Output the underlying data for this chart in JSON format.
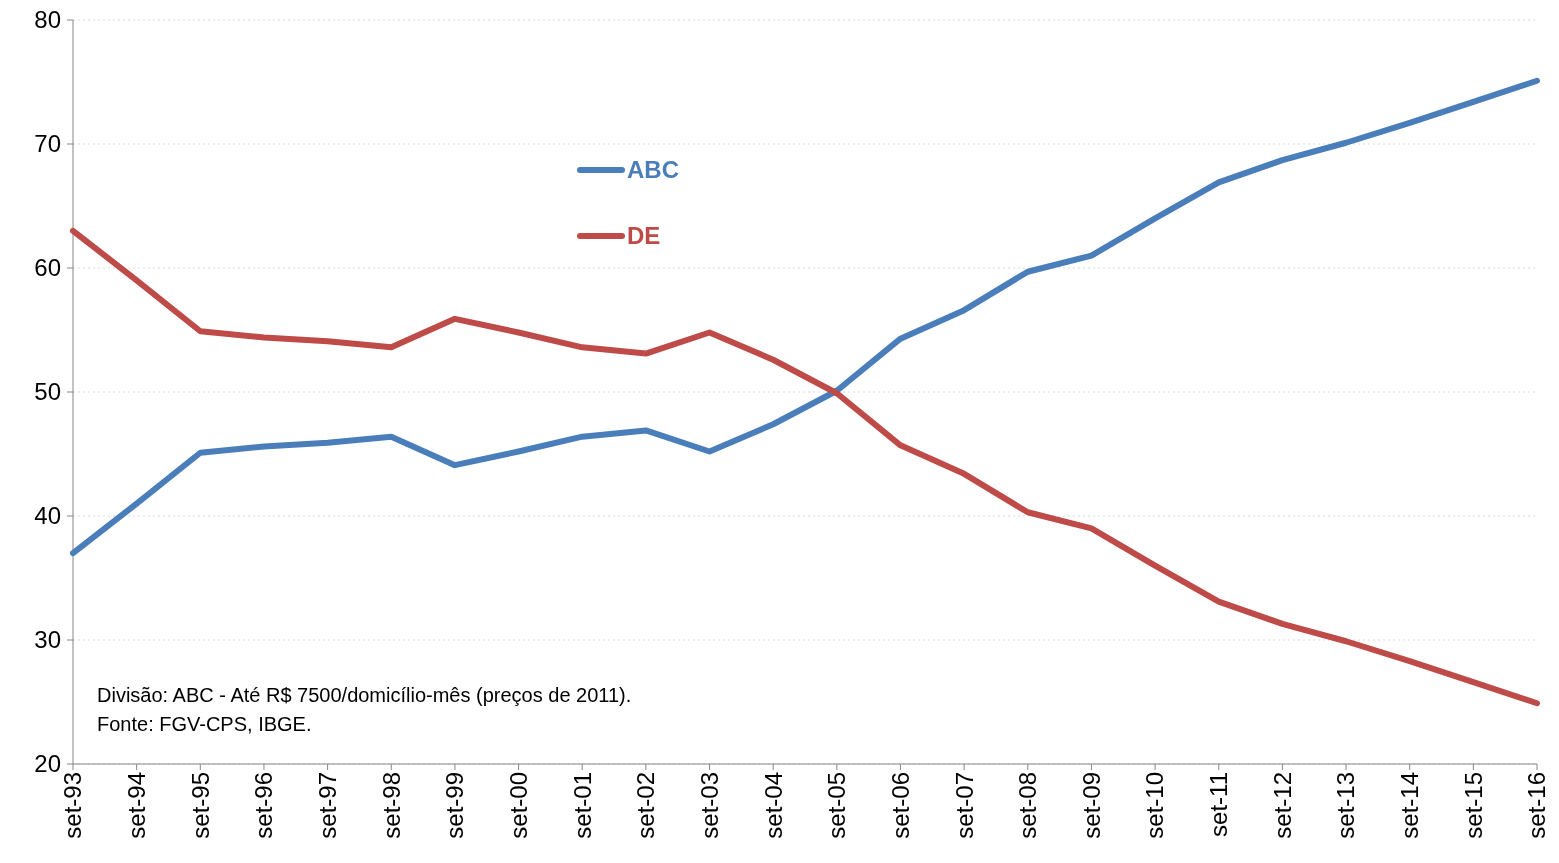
{
  "chart_data": {
    "type": "line",
    "categories": [
      "set-93",
      "set-94",
      "set-95",
      "set-96",
      "set-97",
      "set-98",
      "set-99",
      "set-00",
      "set-01",
      "set-02",
      "set-03",
      "set-04",
      "set-05",
      "set-06",
      "set-07",
      "set-08",
      "set-09",
      "set-10",
      "set-11",
      "set-12",
      "set-13",
      "set-14",
      "set-15",
      "set-16"
    ],
    "series": [
      {
        "name": "ABC",
        "color": "#4a7ebb",
        "values": [
          37.0,
          41.0,
          45.1,
          45.6,
          45.9,
          46.4,
          44.1,
          45.2,
          46.4,
          46.9,
          45.2,
          47.4,
          50.1,
          54.3,
          56.6,
          59.7,
          61.0,
          64.0,
          66.9,
          68.7,
          70.1,
          71.7,
          73.4,
          75.1
        ]
      },
      {
        "name": "DE",
        "color": "#be4b48",
        "values": [
          63.0,
          59.0,
          54.9,
          54.4,
          54.1,
          53.6,
          55.9,
          54.8,
          53.6,
          53.1,
          54.8,
          52.6,
          49.9,
          45.7,
          43.4,
          40.3,
          39.0,
          36.0,
          33.1,
          31.3,
          29.9,
          28.3,
          26.6,
          24.9
        ]
      }
    ],
    "ylim": [
      20,
      80
    ],
    "yticks": [
      20,
      30,
      40,
      50,
      60,
      70,
      80
    ],
    "grid": "y",
    "legend": "top",
    "line_style": "solid",
    "marker": "none",
    "annotations": [
      "Divisão: ABC - Até R$ 7500/domicílio-mês (preços de 2011).",
      "Fonte: FGV-CPS, IBGE."
    ]
  }
}
